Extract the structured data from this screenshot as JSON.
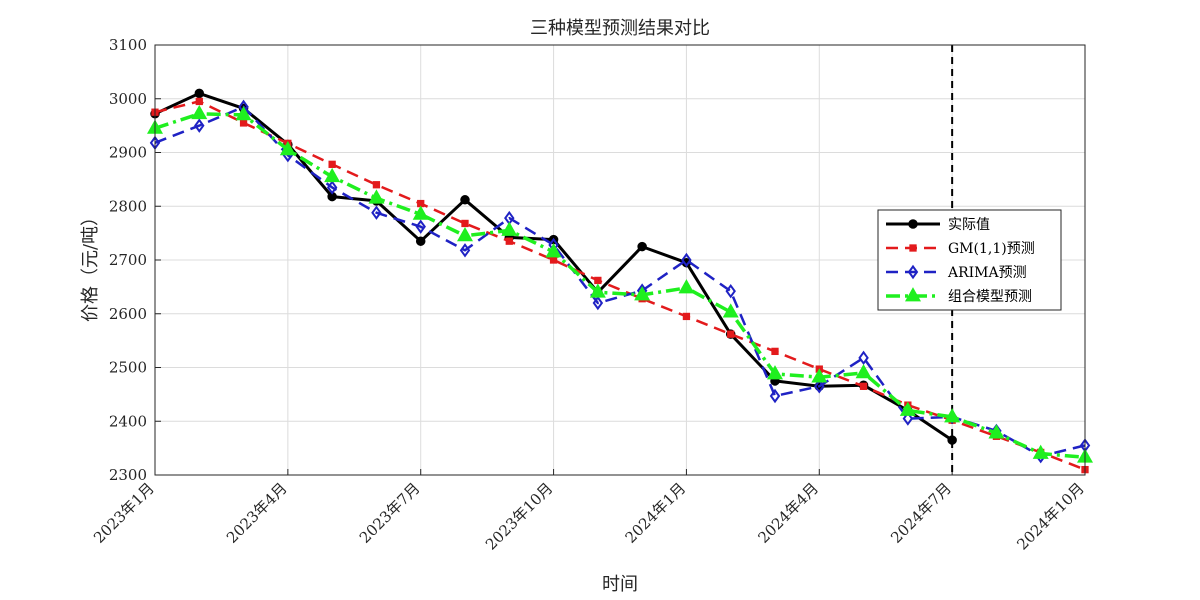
{
  "chart_data": {
    "type": "line",
    "title": "三种模型预测结果对比",
    "xlabel": "时间",
    "ylabel": "价格（元/吨）",
    "ylim": [
      2300,
      3100
    ],
    "yticks": [
      2300,
      2400,
      2500,
      2600,
      2700,
      2800,
      2900,
      3000,
      3100
    ],
    "x_count": 22,
    "xtick_positions": [
      1,
      4,
      7,
      10,
      13,
      16,
      19,
      22
    ],
    "xtick_labels": [
      "2023年1月",
      "2023年4月",
      "2023年7月",
      "2023年10月",
      "2024年1月",
      "2024年4月",
      "2024年7月",
      "2024年10月"
    ],
    "forecast_divider_at": "2024年7月",
    "grid": true,
    "legend_position": "right",
    "series": [
      {
        "name": "实际值",
        "color": "#000000",
        "style": "solid",
        "marker": "circle",
        "values": [
          2972,
          3010,
          2982,
          2915,
          2818,
          2810,
          2735,
          2812,
          2742,
          2738,
          2640,
          2725,
          2695,
          2562,
          2475,
          2465,
          2467,
          2420,
          2365
        ]
      },
      {
        "name": "GM(1,1)预测",
        "color": "#e31a1c",
        "style": "dashed",
        "marker": "square",
        "values": [
          2975,
          2995,
          2955,
          2917,
          2878,
          2840,
          2805,
          2768,
          2735,
          2700,
          2662,
          2628,
          2595,
          2562,
          2530,
          2497,
          2465,
          2430,
          2402,
          2372,
          2342,
          2310
        ]
      },
      {
        "name": "ARIMA预测",
        "color": "#1f22c4",
        "style": "dashed",
        "marker": "diamond",
        "values": [
          2918,
          2950,
          2985,
          2895,
          2835,
          2788,
          2762,
          2718,
          2778,
          2728,
          2620,
          2643,
          2700,
          2642,
          2447,
          2465,
          2518,
          2405,
          2408,
          2382,
          2335,
          2355
        ]
      },
      {
        "name": "组合模型预测",
        "color": "#1fef1f",
        "style": "dashdot",
        "marker": "triangle",
        "values": [
          2945,
          2972,
          2970,
          2905,
          2855,
          2815,
          2785,
          2745,
          2755,
          2715,
          2640,
          2635,
          2648,
          2603,
          2488,
          2482,
          2490,
          2420,
          2408,
          2378,
          2340,
          2333
        ]
      }
    ]
  }
}
